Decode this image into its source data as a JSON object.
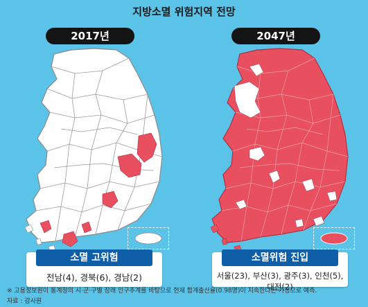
{
  "title": "지방소멸 위험지역 전망",
  "colors": {
    "background": "#5bc3e8",
    "risk": "#e85060",
    "safe": "#ffffff",
    "border": "#8a8a8a",
    "caption_head": "#0e5ea8"
  },
  "panels": [
    {
      "year": "2017년",
      "caption_title": "소멸 고위험",
      "caption_detail": "전남(4), 경북(6), 경남(2)",
      "risk_level": "few regions"
    },
    {
      "year": "2047년",
      "caption_title": "소멸위험 진입",
      "caption_detail": "서울(23), 부산(3), 광주(3), 인천(5), 대전(2)",
      "risk_level": "most regions"
    }
  ],
  "footnote": "※ 고용정보원이 통계청의 시·군·구별 장래 인구추계를 바탕으로 현재 합계출산율(0.98명)이 지속한다는 가정으로 예측.",
  "source": "자료 : 감사원"
}
